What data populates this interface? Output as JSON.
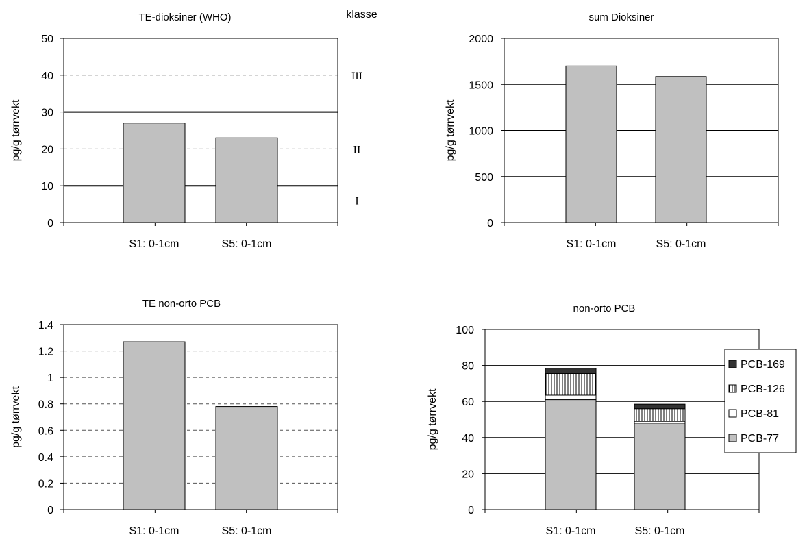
{
  "chart_data": [
    {
      "type": "bar",
      "title": "TE-dioksiner (WHO)",
      "ylabel": "pg/g tørrvekt",
      "categories": [
        "S1: 0-1cm",
        "S5: 0-1cm"
      ],
      "values": [
        27,
        23
      ],
      "ylim": [
        0,
        50
      ],
      "ytick_labels": [
        "0",
        "10",
        "20",
        "30",
        "40",
        "50"
      ],
      "ytick_values": [
        0,
        10,
        20,
        30,
        40,
        50
      ],
      "gridlines": {
        "dashed": [
          20,
          40
        ],
        "solid": [
          10,
          30
        ]
      },
      "class_header": "klasse",
      "class_labels": [
        {
          "label": "I",
          "value": 6
        },
        {
          "label": "II",
          "value": 20
        },
        {
          "label": "III",
          "value": 40
        }
      ],
      "bar_color": "#c0c0c0"
    },
    {
      "type": "bar",
      "title": "sum Dioksiner",
      "ylabel": "pg/g tørrvekt",
      "categories": [
        "S1: 0-1cm",
        "S5: 0-1cm"
      ],
      "values": [
        1700,
        1585
      ],
      "ylim": [
        0,
        2000
      ],
      "ytick_labels": [
        "0",
        "500",
        "1000",
        "1500",
        "2000"
      ],
      "ytick_values": [
        0,
        500,
        1000,
        1500,
        2000
      ],
      "gridlines": {
        "solid": [
          500,
          1000,
          1500
        ]
      },
      "bar_color": "#c0c0c0"
    },
    {
      "type": "bar",
      "title": "TE non-orto PCB",
      "ylabel": "pg/g tørrvekt",
      "categories": [
        "S1: 0-1cm",
        "S5: 0-1cm"
      ],
      "values": [
        1.27,
        0.78
      ],
      "ylim": [
        0,
        1.4
      ],
      "ytick_labels": [
        "0",
        "0.2",
        "0.4",
        "0.6",
        "0.8",
        "1",
        "1.2",
        "1.4"
      ],
      "ytick_values": [
        0,
        0.2,
        0.4,
        0.6,
        0.8,
        1.0,
        1.2,
        1.4
      ],
      "gridlines": {
        "dashed": [
          0.2,
          0.4,
          0.6,
          0.8,
          1.0,
          1.2
        ]
      },
      "bar_color": "#c0c0c0"
    },
    {
      "type": "bar",
      "stacked": true,
      "title": "non-orto PCB",
      "ylabel": "pg/g tørrvekt",
      "categories": [
        "S1: 0-1cm",
        "S5: 0-1cm"
      ],
      "ylim": [
        0,
        100
      ],
      "ytick_labels": [
        "0",
        "20",
        "40",
        "60",
        "80",
        "100"
      ],
      "ytick_values": [
        0,
        20,
        40,
        60,
        80,
        100
      ],
      "gridlines": {
        "solid": [
          20,
          40,
          60,
          80
        ]
      },
      "legend_position": "right",
      "series": [
        {
          "name": "PCB-77",
          "values": [
            61,
            48
          ],
          "fill": "#c0c0c0"
        },
        {
          "name": "PCB-81",
          "values": [
            2.5,
            1
          ],
          "fill": "#ffffff"
        },
        {
          "name": "PCB-126",
          "values": [
            12,
            7
          ],
          "fill": "hatch"
        },
        {
          "name": "PCB-169",
          "values": [
            3,
            2.5
          ],
          "fill": "#333333"
        }
      ]
    }
  ]
}
